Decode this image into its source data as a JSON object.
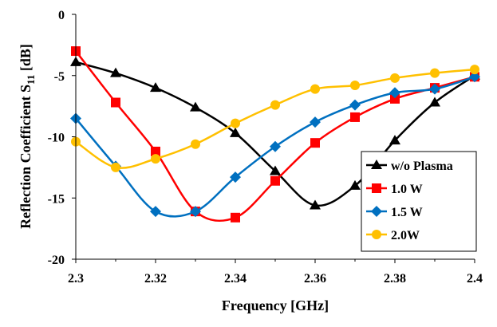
{
  "chart_data": {
    "type": "line",
    "title": "",
    "xlabel": "Frequency [GHz]",
    "ylabel_main": "Reflection Coefficient S",
    "ylabel_sub": "11",
    "ylabel_unit": " [dB]",
    "xlim": [
      2.3,
      2.4
    ],
    "ylim": [
      -20,
      0
    ],
    "x_ticks": [
      "2.3",
      "2.32",
      "2.34",
      "2.36",
      "2.38",
      "2.4"
    ],
    "y_ticks": [
      "0",
      "-5",
      "-10",
      "-15",
      "-20"
    ],
    "grid": false,
    "legend_position": "bottom-right",
    "x": [
      2.3,
      2.31,
      2.32,
      2.33,
      2.34,
      2.35,
      2.36,
      2.37,
      2.38,
      2.39,
      2.4
    ],
    "series": [
      {
        "name": "w/o Plasma",
        "color": "#000000",
        "marker": "triangle",
        "values": [
          -3.9,
          -4.8,
          -6.0,
          -7.6,
          -9.7,
          -12.8,
          -15.6,
          -14.0,
          -10.3,
          -7.2,
          -5.0
        ]
      },
      {
        "name": "1.0 W",
        "color": "#ff0000",
        "marker": "square",
        "values": [
          -3.0,
          -7.2,
          -11.2,
          -16.1,
          -16.6,
          -13.6,
          -10.5,
          -8.4,
          -6.9,
          -6.0,
          -5.1
        ]
      },
      {
        "name": "1.5 W",
        "color": "#0070c0",
        "marker": "diamond",
        "values": [
          -8.5,
          -12.4,
          -16.1,
          -16.1,
          -13.3,
          -10.8,
          -8.8,
          -7.4,
          -6.4,
          -6.1,
          -5.1
        ]
      },
      {
        "name": "2.0W",
        "color": "#ffc000",
        "marker": "circle",
        "values": [
          -10.4,
          -12.5,
          -11.8,
          -10.6,
          -8.9,
          -7.4,
          -6.1,
          -5.8,
          -5.2,
          -4.8,
          -4.5
        ]
      }
    ]
  }
}
